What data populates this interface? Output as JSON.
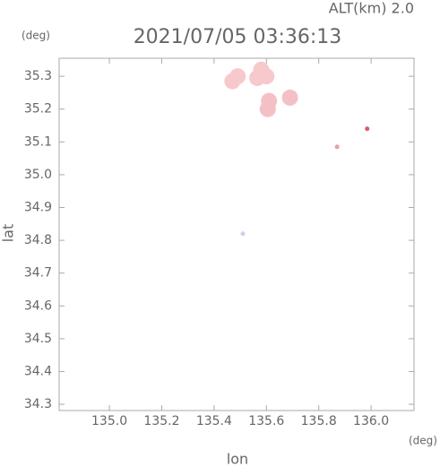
{
  "chart_data": {
    "type": "scatter",
    "title": "2021/07/05 03:36:13",
    "subtitle": "ALT(km) 2.0",
    "x_label": "lon",
    "x_unit": "(deg)",
    "y_label": "lat",
    "y_unit": "(deg)",
    "x": [
      135.58,
      135.565,
      135.6,
      135.49,
      135.47,
      135.61,
      135.605,
      135.69,
      135.87,
      135.985,
      135.51
    ],
    "y": [
      35.32,
      35.295,
      35.3,
      35.3,
      35.285,
      35.225,
      35.2,
      35.235,
      35.085,
      35.14,
      34.82
    ],
    "colors": [
      "#f7c9cc",
      "#f7c9cc",
      "#f7c9cc",
      "#f7c9cc",
      "#f7c9cc",
      "#f3c0c6",
      "#f3c0c6",
      "#f3c0c6",
      "#e8a0a8",
      "#e05a6a",
      "#d0d0e8"
    ],
    "xlim": [
      134.808,
      136.164
    ],
    "ylim": [
      34.281,
      35.355
    ],
    "xticks": [
      {
        "value": 135,
        "label": "135.0"
      },
      135.2,
      135.4,
      135.6,
      135.8,
      {
        "value": 136,
        "label": "136.0"
      }
    ],
    "yticks": [
      34.3,
      34.4,
      34.5,
      34.6,
      34.7,
      34.8,
      34.9,
      {
        "value": 35,
        "label": "35.0"
      },
      35.1,
      35.2,
      35.3
    ]
  }
}
